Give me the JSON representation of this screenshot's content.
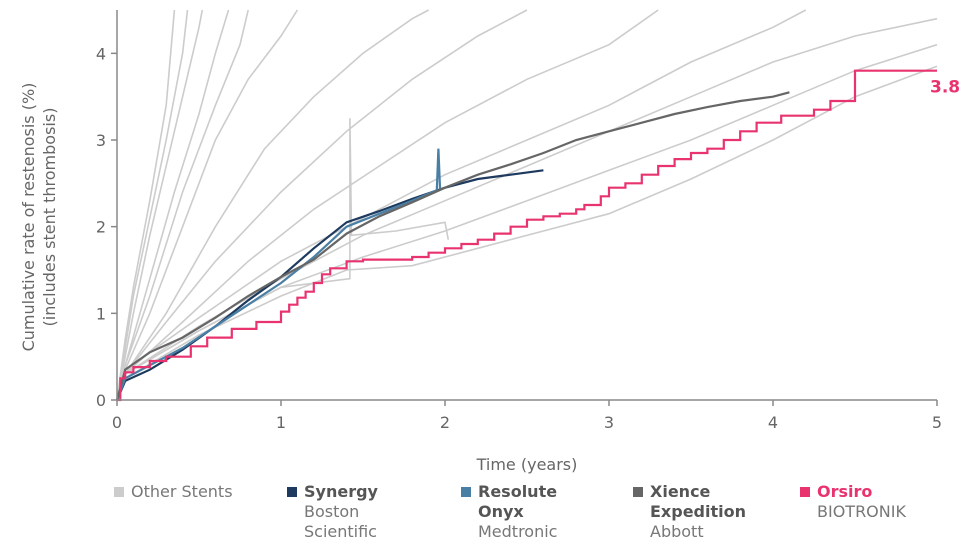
{
  "chart_data": {
    "type": "line",
    "title": "",
    "xlabel": "Time (years)",
    "ylabel_line1": "Cumulative rate of restenosis (%)",
    "ylabel_line2": "(includes stent thrombosis)",
    "xlim": [
      0,
      5
    ],
    "ylim": [
      0,
      4.5
    ],
    "x_ticks": [
      "0",
      "1",
      "2",
      "3",
      "4",
      "5"
    ],
    "y_ticks": [
      "0",
      "1",
      "2",
      "3",
      "4"
    ],
    "grid": false,
    "legend_position": "bottom",
    "end_label": "3.8",
    "series": [
      {
        "name": "Orsiro",
        "maker": "BIOTRONIK",
        "color": "#e8336e",
        "step": true,
        "points": [
          [
            0,
            0
          ],
          [
            0.02,
            0.25
          ],
          [
            0.05,
            0.32
          ],
          [
            0.1,
            0.38
          ],
          [
            0.2,
            0.45
          ],
          [
            0.3,
            0.5
          ],
          [
            0.45,
            0.62
          ],
          [
            0.55,
            0.72
          ],
          [
            0.7,
            0.82
          ],
          [
            0.85,
            0.9
          ],
          [
            1.0,
            1.02
          ],
          [
            1.05,
            1.1
          ],
          [
            1.1,
            1.18
          ],
          [
            1.15,
            1.25
          ],
          [
            1.2,
            1.35
          ],
          [
            1.25,
            1.45
          ],
          [
            1.3,
            1.52
          ],
          [
            1.4,
            1.6
          ],
          [
            1.5,
            1.62
          ],
          [
            1.75,
            1.62
          ],
          [
            1.8,
            1.65
          ],
          [
            1.9,
            1.7
          ],
          [
            2.0,
            1.75
          ],
          [
            2.1,
            1.8
          ],
          [
            2.2,
            1.85
          ],
          [
            2.3,
            1.92
          ],
          [
            2.4,
            2.0
          ],
          [
            2.5,
            2.08
          ],
          [
            2.6,
            2.12
          ],
          [
            2.7,
            2.15
          ],
          [
            2.8,
            2.2
          ],
          [
            2.85,
            2.25
          ],
          [
            2.95,
            2.35
          ],
          [
            3.0,
            2.45
          ],
          [
            3.1,
            2.5
          ],
          [
            3.2,
            2.6
          ],
          [
            3.3,
            2.7
          ],
          [
            3.4,
            2.78
          ],
          [
            3.5,
            2.85
          ],
          [
            3.6,
            2.9
          ],
          [
            3.7,
            3.0
          ],
          [
            3.8,
            3.1
          ],
          [
            3.9,
            3.2
          ],
          [
            4.05,
            3.28
          ],
          [
            4.25,
            3.35
          ],
          [
            4.35,
            3.45
          ],
          [
            4.5,
            3.8
          ],
          [
            5.0,
            3.8
          ]
        ]
      },
      {
        "name": "Xience Expedition",
        "maker": "Abbott",
        "color": "#666666",
        "step": false,
        "points": [
          [
            0,
            0
          ],
          [
            0.05,
            0.35
          ],
          [
            0.2,
            0.55
          ],
          [
            0.4,
            0.72
          ],
          [
            0.6,
            0.95
          ],
          [
            0.8,
            1.2
          ],
          [
            1.0,
            1.42
          ],
          [
            1.2,
            1.62
          ],
          [
            1.4,
            1.92
          ],
          [
            1.6,
            2.12
          ],
          [
            1.8,
            2.28
          ],
          [
            2.0,
            2.45
          ],
          [
            2.2,
            2.6
          ],
          [
            2.4,
            2.72
          ],
          [
            2.6,
            2.85
          ],
          [
            2.8,
            3.0
          ],
          [
            3.0,
            3.1
          ],
          [
            3.2,
            3.2
          ],
          [
            3.4,
            3.3
          ],
          [
            3.6,
            3.38
          ],
          [
            3.8,
            3.45
          ],
          [
            4.0,
            3.5
          ],
          [
            4.1,
            3.55
          ]
        ]
      },
      {
        "name": "Resolute Onyx",
        "maker": "Medtronic",
        "color": "#4a7fa5",
        "step": false,
        "points": [
          [
            0,
            0
          ],
          [
            0.05,
            0.25
          ],
          [
            0.2,
            0.4
          ],
          [
            0.4,
            0.6
          ],
          [
            0.6,
            0.85
          ],
          [
            0.8,
            1.1
          ],
          [
            1.0,
            1.35
          ],
          [
            1.2,
            1.65
          ],
          [
            1.4,
            2.0
          ],
          [
            1.6,
            2.15
          ],
          [
            1.8,
            2.3
          ],
          [
            1.95,
            2.42
          ],
          [
            1.96,
            2.9
          ],
          [
            1.97,
            2.42
          ]
        ]
      },
      {
        "name": "Synergy",
        "maker": "Boston Scientific",
        "color": "#1e3a5f",
        "step": false,
        "points": [
          [
            0,
            0
          ],
          [
            0.05,
            0.22
          ],
          [
            0.2,
            0.35
          ],
          [
            0.4,
            0.58
          ],
          [
            0.6,
            0.85
          ],
          [
            0.8,
            1.15
          ],
          [
            1.0,
            1.42
          ],
          [
            1.2,
            1.75
          ],
          [
            1.4,
            2.05
          ],
          [
            1.6,
            2.18
          ],
          [
            1.8,
            2.32
          ],
          [
            2.0,
            2.45
          ],
          [
            2.2,
            2.55
          ],
          [
            2.4,
            2.6
          ],
          [
            2.6,
            2.65
          ]
        ]
      }
    ],
    "background_series": {
      "name": "Other Stents",
      "color": "#cccccc",
      "curves": [
        [
          [
            0,
            0
          ],
          [
            0.05,
            0.7
          ],
          [
            0.1,
            1.3
          ],
          [
            0.2,
            2.3
          ],
          [
            0.3,
            3.4
          ],
          [
            0.35,
            4.5
          ]
        ],
        [
          [
            0,
            0
          ],
          [
            0.05,
            0.6
          ],
          [
            0.1,
            1.2
          ],
          [
            0.2,
            2.1
          ],
          [
            0.3,
            3.0
          ],
          [
            0.4,
            4.0
          ],
          [
            0.43,
            4.5
          ]
        ],
        [
          [
            0,
            0
          ],
          [
            0.05,
            0.5
          ],
          [
            0.1,
            1.0
          ],
          [
            0.2,
            1.9
          ],
          [
            0.3,
            2.7
          ],
          [
            0.4,
            3.5
          ],
          [
            0.5,
            4.3
          ],
          [
            0.52,
            4.5
          ]
        ],
        [
          [
            0,
            0
          ],
          [
            0.05,
            0.4
          ],
          [
            0.2,
            1.4
          ],
          [
            0.35,
            2.4
          ],
          [
            0.5,
            3.3
          ],
          [
            0.6,
            4.0
          ],
          [
            0.68,
            4.5
          ]
        ],
        [
          [
            0,
            0
          ],
          [
            0.05,
            0.4
          ],
          [
            0.2,
            1.2
          ],
          [
            0.4,
            2.4
          ],
          [
            0.6,
            3.4
          ],
          [
            0.75,
            4.1
          ],
          [
            0.8,
            4.5
          ]
        ],
        [
          [
            0,
            0
          ],
          [
            0.05,
            0.35
          ],
          [
            0.2,
            1.0
          ],
          [
            0.4,
            2.0
          ],
          [
            0.6,
            3.0
          ],
          [
            0.8,
            3.7
          ],
          [
            1.0,
            4.2
          ],
          [
            1.1,
            4.5
          ]
        ],
        [
          [
            0,
            0
          ],
          [
            0.05,
            0.3
          ],
          [
            0.3,
            1.0
          ],
          [
            0.6,
            2.0
          ],
          [
            0.9,
            2.9
          ],
          [
            1.2,
            3.5
          ],
          [
            1.5,
            4.0
          ],
          [
            1.8,
            4.4
          ],
          [
            1.9,
            4.5
          ]
        ],
        [
          [
            0,
            0
          ],
          [
            0.05,
            0.3
          ],
          [
            0.3,
            0.9
          ],
          [
            0.6,
            1.6
          ],
          [
            1.0,
            2.4
          ],
          [
            1.4,
            3.1
          ],
          [
            1.8,
            3.7
          ],
          [
            2.2,
            4.2
          ],
          [
            2.5,
            4.5
          ]
        ],
        [
          [
            0,
            0
          ],
          [
            0.05,
            0.3
          ],
          [
            0.4,
            0.9
          ],
          [
            0.8,
            1.6
          ],
          [
            1.2,
            2.2
          ],
          [
            1.6,
            2.7
          ],
          [
            2.0,
            3.2
          ],
          [
            2.5,
            3.7
          ],
          [
            3.0,
            4.1
          ],
          [
            3.3,
            4.5
          ]
        ],
        [
          [
            0,
            0
          ],
          [
            0.05,
            0.35
          ],
          [
            0.5,
            0.95
          ],
          [
            1.0,
            1.6
          ],
          [
            1.5,
            2.1
          ],
          [
            2.0,
            2.6
          ],
          [
            2.5,
            3.0
          ],
          [
            3.0,
            3.4
          ],
          [
            3.5,
            3.9
          ],
          [
            4.0,
            4.3
          ],
          [
            4.2,
            4.5
          ]
        ],
        [
          [
            0,
            0
          ],
          [
            0.05,
            0.3
          ],
          [
            0.5,
            0.85
          ],
          [
            1.0,
            1.4
          ],
          [
            1.5,
            1.9
          ],
          [
            2.0,
            2.3
          ],
          [
            2.5,
            2.7
          ],
          [
            3.0,
            3.1
          ],
          [
            3.5,
            3.5
          ],
          [
            4.0,
            3.9
          ],
          [
            4.5,
            4.2
          ],
          [
            5.0,
            4.4
          ]
        ],
        [
          [
            0,
            0
          ],
          [
            0.05,
            0.3
          ],
          [
            0.5,
            0.8
          ],
          [
            1.0,
            1.3
          ],
          [
            1.5,
            1.65
          ],
          [
            2.0,
            1.95
          ],
          [
            2.5,
            2.3
          ],
          [
            3.0,
            2.65
          ],
          [
            3.5,
            3.0
          ],
          [
            4.0,
            3.4
          ],
          [
            4.5,
            3.8
          ],
          [
            5.0,
            4.1
          ]
        ],
        [
          [
            0,
            0
          ],
          [
            0.05,
            0.25
          ],
          [
            0.5,
            0.75
          ],
          [
            1.0,
            1.2
          ],
          [
            1.4,
            1.5
          ],
          [
            1.8,
            1.55
          ],
          [
            2.2,
            1.75
          ],
          [
            2.6,
            1.95
          ],
          [
            3.0,
            2.15
          ],
          [
            3.5,
            2.55
          ],
          [
            4.0,
            3.0
          ],
          [
            4.5,
            3.5
          ],
          [
            5.0,
            3.85
          ]
        ],
        [
          [
            0,
            0
          ],
          [
            0.05,
            0.3
          ],
          [
            0.5,
            0.8
          ],
          [
            1.0,
            1.3
          ],
          [
            1.42,
            1.4
          ],
          [
            1.42,
            3.25
          ],
          [
            1.43,
            1.9
          ],
          [
            1.7,
            1.95
          ],
          [
            2.0,
            2.05
          ],
          [
            2.02,
            1.85
          ]
        ]
      ]
    }
  }
}
